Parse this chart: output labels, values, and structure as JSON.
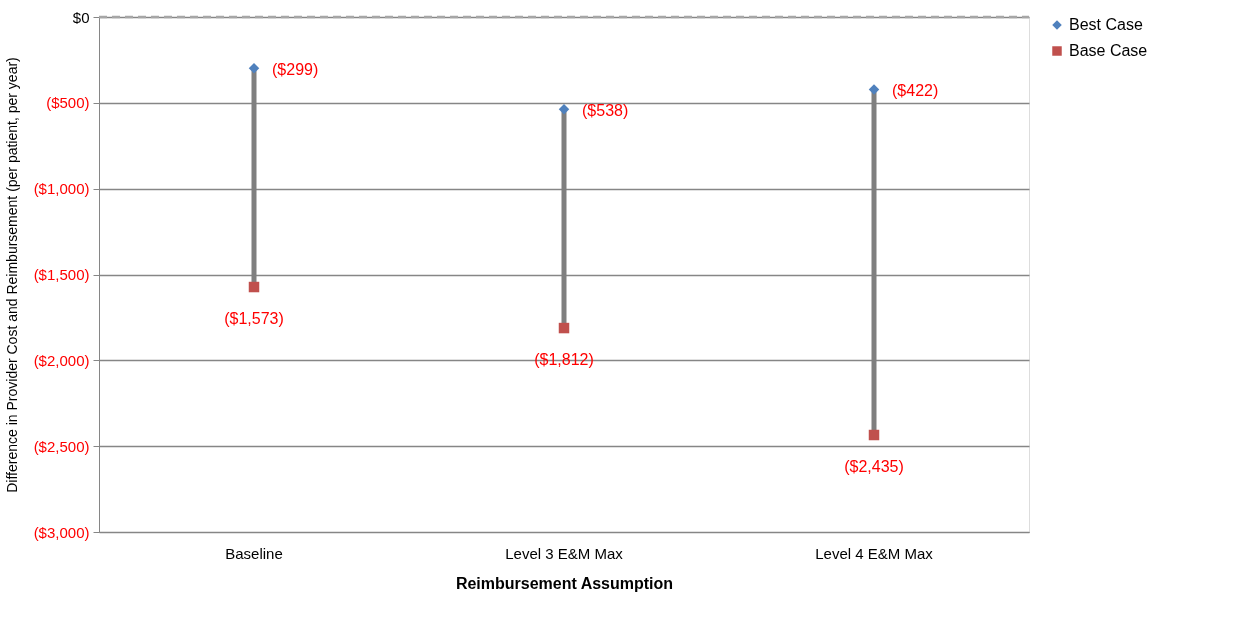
{
  "chart_data": {
    "type": "scatter",
    "xlabel": "Reimbursement Assumption",
    "ylabel": "Difference in Provider Cost and Reimbursement (per patient, per year)",
    "categories": [
      "Baseline",
      "Level 3 E&M Max",
      "Level 4 E&M Max"
    ],
    "series": [
      {
        "name": "Best Case",
        "color": "#4f81bd",
        "marker": "diamond",
        "values": [
          -299,
          -538,
          -422
        ],
        "value_labels": [
          "($299)",
          "($538)",
          "($422)"
        ]
      },
      {
        "name": "Base Case",
        "color": "#c0504d",
        "marker": "square",
        "values": [
          -1573,
          -1812,
          -2435
        ],
        "value_labels": [
          "($1,573)",
          "($1,812)",
          "($2,435)"
        ]
      }
    ],
    "ylim": [
      -3000,
      0
    ],
    "yticks": [
      {
        "value": 0,
        "label": "$0"
      },
      {
        "value": -500,
        "label": "($500)"
      },
      {
        "value": -1000,
        "label": "($1,000)"
      },
      {
        "value": -1500,
        "label": "($1,500)"
      },
      {
        "value": -2000,
        "label": "($2,000)"
      },
      {
        "value": -2500,
        "label": "($2,500)"
      },
      {
        "value": -3000,
        "label": "($3,000)"
      }
    ],
    "ref_lines": [
      {
        "axis": "y",
        "value": 0,
        "color": "#a6a6a6",
        "line_style": "dashed"
      }
    ],
    "grid": "y",
    "legend": "right"
  }
}
